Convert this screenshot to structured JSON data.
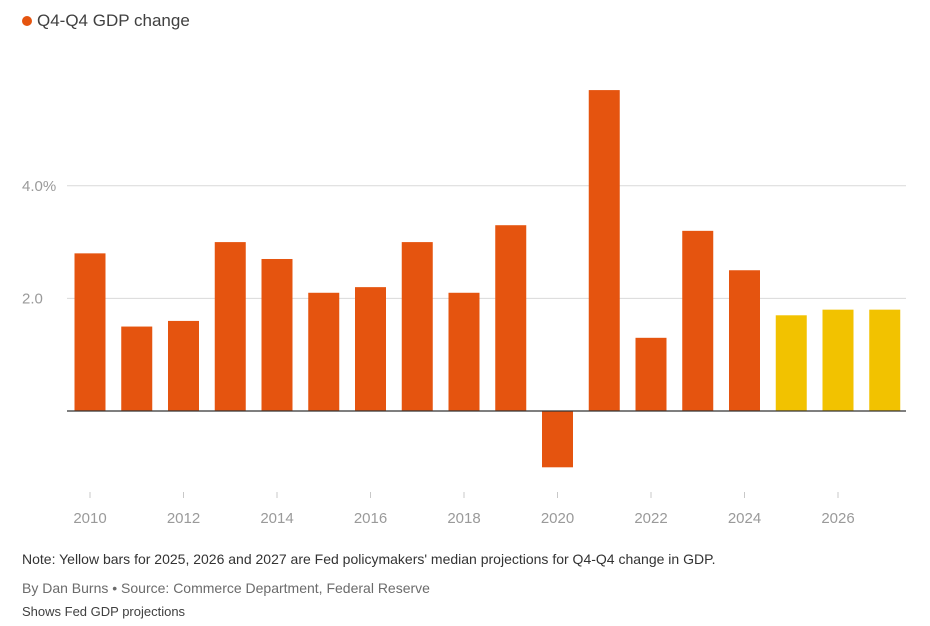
{
  "chart_data": {
    "type": "bar",
    "legend": {
      "label": "Q4-Q4 GDP change",
      "color": "#e5540f",
      "position": "top-left"
    },
    "categories": [
      "2010",
      "2011",
      "2012",
      "2013",
      "2014",
      "2015",
      "2016",
      "2017",
      "2018",
      "2019",
      "2020",
      "2021",
      "2022",
      "2023",
      "2024",
      "2025",
      "2026",
      "2027"
    ],
    "values": [
      2.8,
      1.5,
      1.6,
      3.0,
      2.7,
      2.1,
      2.2,
      3.0,
      2.1,
      3.3,
      -1.0,
      5.7,
      1.3,
      3.2,
      2.5,
      1.7,
      1.8,
      1.8
    ],
    "projected": [
      false,
      false,
      false,
      false,
      false,
      false,
      false,
      false,
      false,
      false,
      false,
      false,
      false,
      false,
      false,
      true,
      true,
      true
    ],
    "colors": {
      "actual": "#e5540f",
      "projection": "#f2c200",
      "grid": "#d9d9d9",
      "baseline": "#333333"
    },
    "x_tick_labels": [
      "2010",
      "2012",
      "2014",
      "2016",
      "2018",
      "2020",
      "2022",
      "2024",
      "2026"
    ],
    "y_ticks": [
      {
        "value": 2.0,
        "label": "2.0"
      },
      {
        "value": 4.0,
        "label": "4.0%"
      }
    ],
    "ylim": [
      -1.5,
      6.0
    ],
    "grid": true
  },
  "footer": {
    "note": "Note: Yellow bars for 2025, 2026 and 2027 are Fed policymakers' median projections for Q4-Q4 change in GDP.",
    "credit": "By Dan Burns • Source: Commerce Department, Federal Reserve",
    "subtitle": "Shows Fed GDP projections"
  }
}
